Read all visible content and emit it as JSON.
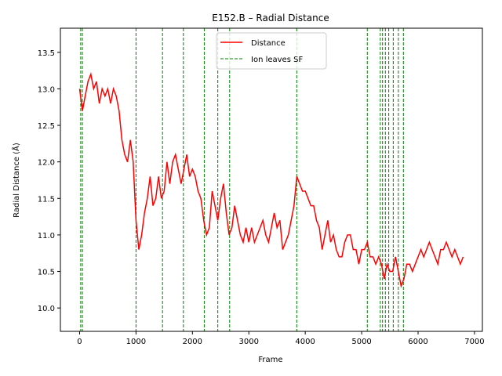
{
  "chart_data": {
    "type": "line",
    "title": "E152.B – Radial Distance",
    "xlabel": "Frame",
    "ylabel": "Radial Distance (Å)",
    "xlim": [
      -340,
      7140
    ],
    "ylim": [
      9.68,
      13.83
    ],
    "xticks": [
      0,
      1000,
      2000,
      3000,
      4000,
      5000,
      6000,
      7000
    ],
    "xtick_labels": [
      "0",
      "1000",
      "2000",
      "3000",
      "4000",
      "5000",
      "6000",
      "7000"
    ],
    "yticks": [
      10.0,
      10.5,
      11.0,
      11.5,
      12.0,
      12.5,
      13.0,
      13.5
    ],
    "ytick_labels": [
      "10.0",
      "10.5",
      "11.0",
      "11.5",
      "12.0",
      "12.5",
      "13.0",
      "13.5"
    ],
    "grid": false,
    "legend_position": "top-center",
    "series": [
      {
        "name": "Distance",
        "color": "#ff0000",
        "style": "solid",
        "x": [
          0,
          50,
          100,
          150,
          200,
          250,
          300,
          350,
          400,
          450,
          500,
          550,
          600,
          650,
          700,
          750,
          800,
          850,
          900,
          950,
          1000,
          1050,
          1100,
          1150,
          1200,
          1250,
          1300,
          1350,
          1400,
          1450,
          1500,
          1550,
          1600,
          1650,
          1700,
          1750,
          1800,
          1850,
          1900,
          1950,
          2000,
          2050,
          2100,
          2150,
          2200,
          2250,
          2300,
          2350,
          2400,
          2450,
          2500,
          2550,
          2600,
          2650,
          2700,
          2750,
          2800,
          2850,
          2900,
          2950,
          3000,
          3050,
          3100,
          3150,
          3200,
          3250,
          3300,
          3350,
          3400,
          3450,
          3500,
          3550,
          3600,
          3650,
          3700,
          3750,
          3800,
          3850,
          3900,
          3950,
          4000,
          4050,
          4100,
          4150,
          4200,
          4250,
          4300,
          4350,
          4400,
          4450,
          4500,
          4550,
          4600,
          4650,
          4700,
          4750,
          4800,
          4850,
          4900,
          4950,
          5000,
          5050,
          5100,
          5150,
          5200,
          5250,
          5300,
          5350,
          5400,
          5450,
          5500,
          5550,
          5600,
          5650,
          5700,
          5750,
          5800,
          5850,
          5900,
          5950,
          6000,
          6050,
          6100,
          6150,
          6200,
          6250,
          6300,
          6350,
          6400,
          6450,
          6500,
          6550,
          6600,
          6650,
          6700,
          6750,
          6800
        ],
        "y": [
          13.0,
          12.7,
          12.9,
          13.1,
          13.2,
          13.0,
          13.1,
          12.8,
          13.0,
          12.9,
          13.0,
          12.8,
          13.0,
          12.9,
          12.7,
          12.3,
          12.1,
          12.0,
          12.3,
          12.0,
          11.2,
          10.8,
          11.0,
          11.3,
          11.5,
          11.8,
          11.4,
          11.5,
          11.8,
          11.5,
          11.6,
          12.0,
          11.7,
          12.0,
          12.1,
          11.9,
          11.7,
          11.9,
          12.1,
          11.8,
          11.9,
          11.8,
          11.6,
          11.5,
          11.2,
          11.0,
          11.1,
          11.6,
          11.4,
          11.2,
          11.5,
          11.7,
          11.3,
          11.0,
          11.1,
          11.4,
          11.2,
          11.0,
          10.9,
          11.1,
          10.9,
          11.1,
          10.9,
          11.0,
          11.1,
          11.2,
          11.0,
          10.9,
          11.1,
          11.3,
          11.1,
          11.2,
          10.8,
          10.9,
          11.0,
          11.2,
          11.4,
          11.8,
          11.7,
          11.6,
          11.6,
          11.5,
          11.4,
          11.4,
          11.2,
          11.1,
          10.8,
          11.0,
          11.2,
          10.9,
          11.0,
          10.8,
          10.7,
          10.7,
          10.9,
          11.0,
          11.0,
          10.8,
          10.8,
          10.6,
          10.8,
          10.8,
          10.9,
          10.7,
          10.7,
          10.6,
          10.7,
          10.6,
          10.4,
          10.6,
          10.5,
          10.5,
          10.7,
          10.5,
          10.3,
          10.4,
          10.6,
          10.6,
          10.5,
          10.6,
          10.7,
          10.8,
          10.7,
          10.8,
          10.9,
          10.8,
          10.7,
          10.6,
          10.8,
          10.8,
          10.9,
          10.8,
          10.7,
          10.8,
          10.7,
          10.6,
          10.7
        ]
      }
    ],
    "vlines": {
      "name": "Ion leaves SF",
      "color": "#008000",
      "style": "dashed",
      "x": [
        20,
        50,
        1000,
        1470,
        1840,
        2210,
        2450,
        2660,
        3850,
        5100,
        5330,
        5370,
        5420,
        5480,
        5560,
        5650,
        5740
      ]
    }
  }
}
